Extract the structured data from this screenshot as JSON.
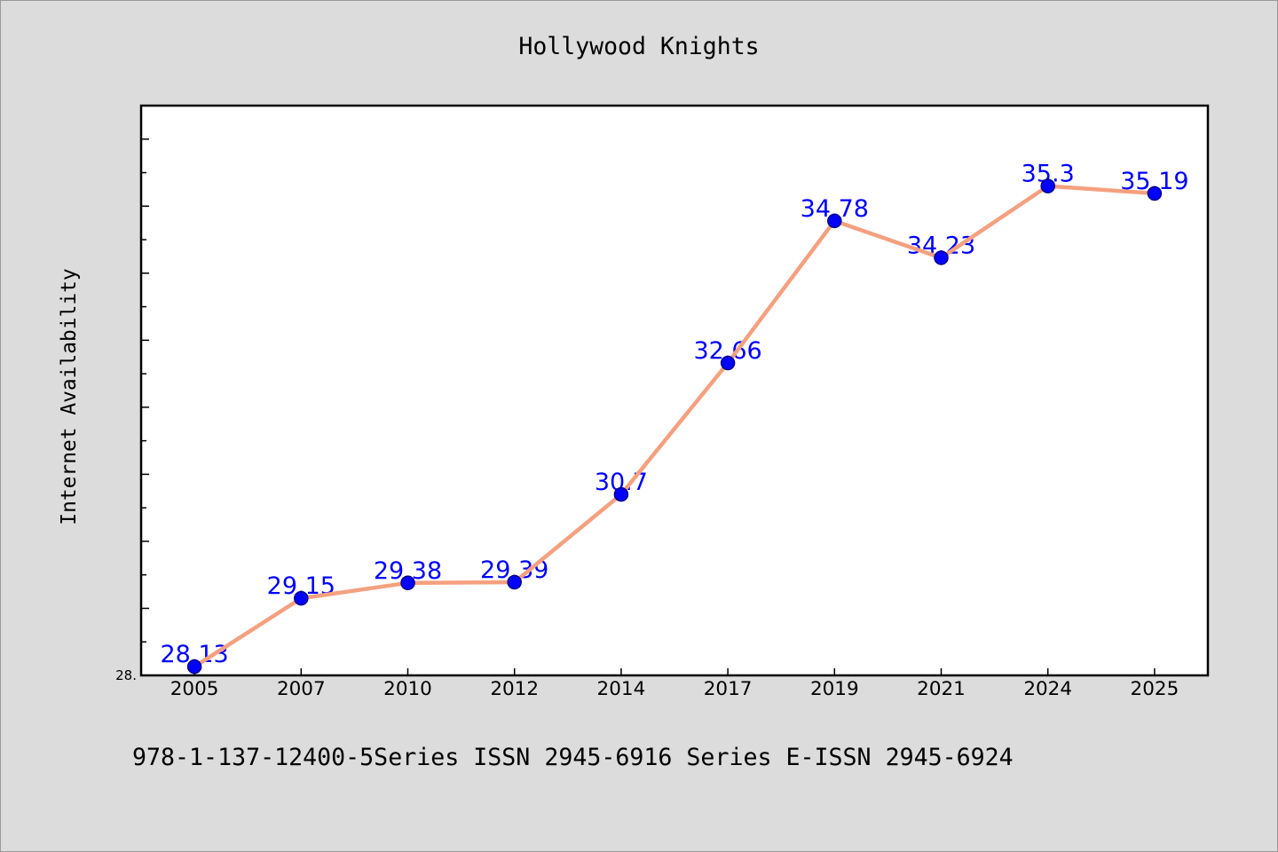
{
  "chart_data": {
    "type": "line",
    "title": "Hollywood Knights",
    "ylabel": "Internet Availability",
    "categories": [
      "2005",
      "2007",
      "2010",
      "2012",
      "2014",
      "2017",
      "2019",
      "2021",
      "2024",
      "2025"
    ],
    "series": [
      {
        "values": [
          28.13,
          29.15,
          29.38,
          29.39,
          30.7,
          32.66,
          34.78,
          34.23,
          35.3,
          35.19
        ],
        "marker": "circle",
        "data_labels": true
      }
    ],
    "ylim": [
      28,
      36.5
    ],
    "y_ticks": [
      {
        "value": 28,
        "label": "28."
      }
    ],
    "grid": false,
    "legend": "none",
    "colors": {
      "figure_background": "#dcdcdc",
      "plot_background": "#ffffff",
      "line": "#f5a07f",
      "marker": "#0000ff",
      "data_label": "#0000ff"
    }
  },
  "figure": {
    "footer": "978-1-137-12400-5Series ISSN 2945-6916 Series E-ISSN 2945-6924"
  }
}
